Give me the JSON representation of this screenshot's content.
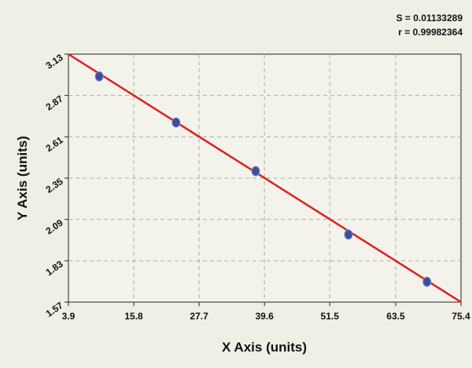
{
  "chart_data": {
    "type": "scatter",
    "annotations": [
      "S = 0.01133289",
      "r = 0.99982364"
    ],
    "x_label": "X Axis (units)",
    "y_label": "Y Axis (units)",
    "x": [
      9.5,
      23.5,
      38.0,
      54.9,
      69.2
    ],
    "values": [
      2.99,
      2.7,
      2.394,
      1.995,
      1.698
    ],
    "color": "#3b4ea3",
    "fit_line": {
      "x": [
        3.9,
        75.4
      ],
      "y": [
        3.13,
        1.57
      ],
      "color": "#e0201a"
    },
    "xlim": [
      3.9,
      75.4
    ],
    "xticks": [
      3.9,
      15.8,
      27.7,
      39.6,
      51.5,
      63.5,
      75.4
    ],
    "ylim": [
      1.57,
      3.13
    ],
    "yticks": [
      1.57,
      1.83,
      2.09,
      2.35,
      2.61,
      2.87,
      3.13
    ],
    "grid": true
  }
}
